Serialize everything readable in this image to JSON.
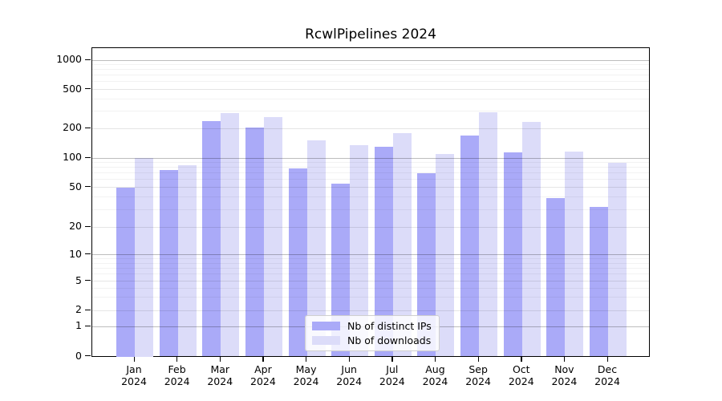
{
  "title": "RcwlPipelines 2024",
  "colors": {
    "distinct_ips": "#aaaaf8",
    "downloads": "#dcdcf9",
    "axis": "#000000",
    "grid_major": "#bfbfbf"
  },
  "chart_data": {
    "type": "bar",
    "title": "RcwlPipelines 2024",
    "scale_y": "log-like (symlog, 0 at baseline)",
    "grid": "horizontal, on",
    "legend_position": "bottom-center-inside",
    "categories": [
      "Jan",
      "Feb",
      "Mar",
      "Apr",
      "May",
      "Jun",
      "Jul",
      "Aug",
      "Sep",
      "Oct",
      "Nov",
      "Dec"
    ],
    "x_year_label": "2024",
    "yticks": [
      1000,
      500,
      200,
      100,
      50,
      20,
      10,
      5,
      2,
      1,
      0
    ],
    "series": [
      {
        "name": "Nb of distinct IPs",
        "key": "distinct_ips",
        "values": [
          50,
          75,
          237,
          205,
          78,
          54,
          131,
          70,
          170,
          115,
          39,
          32
        ]
      },
      {
        "name": "Nb of downloads",
        "key": "downloads",
        "values": [
          100,
          85,
          287,
          260,
          150,
          135,
          179,
          110,
          293,
          231,
          117,
          90
        ]
      }
    ]
  },
  "legend": {
    "items": [
      {
        "label": "Nb of distinct IPs",
        "color": "#aaaaf8"
      },
      {
        "label": "Nb of downloads",
        "color": "#dcdcf9"
      }
    ]
  }
}
